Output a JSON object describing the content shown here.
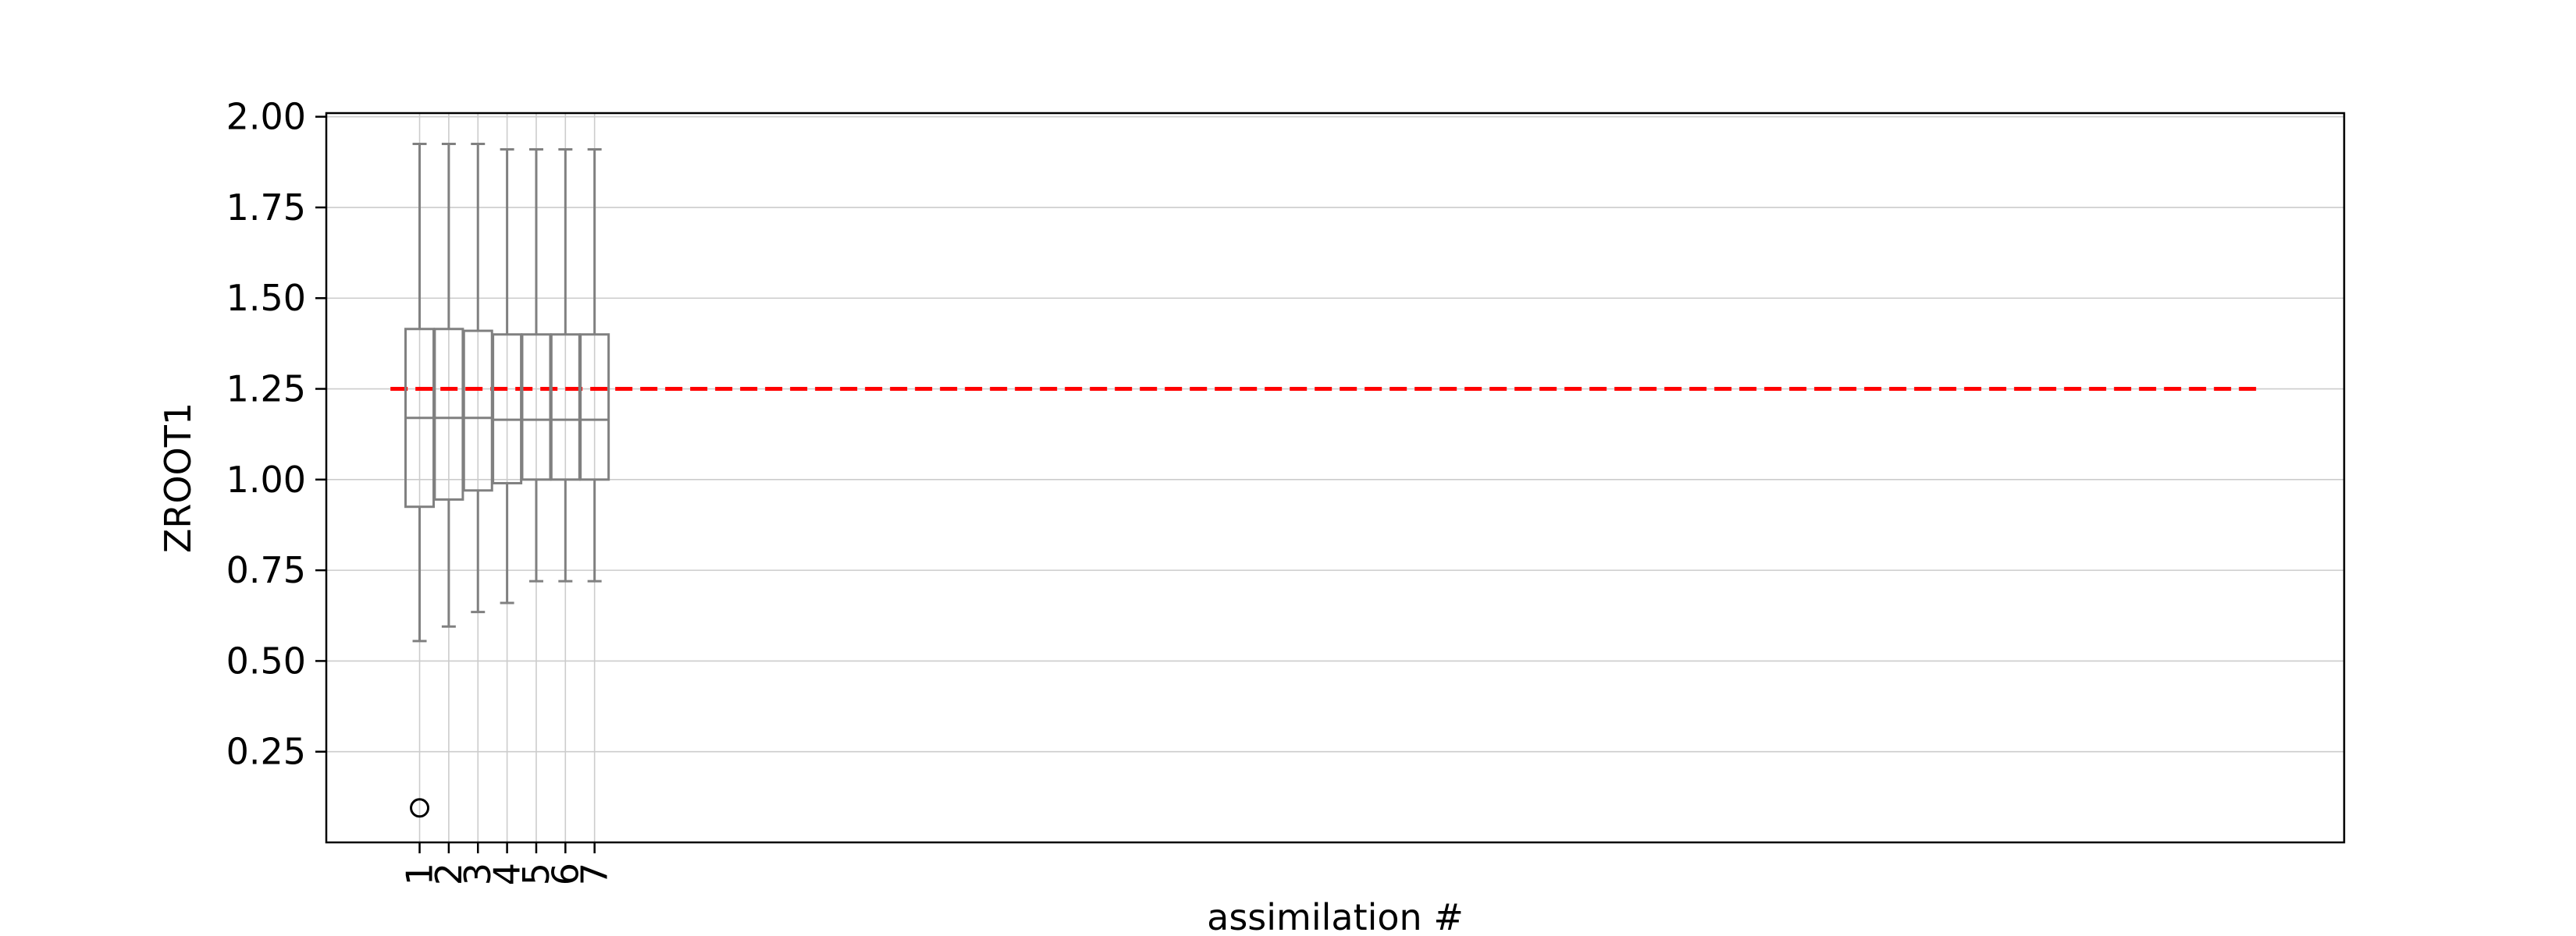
{
  "chart_data": {
    "type": "box",
    "title": "",
    "xlabel": "assimilation #",
    "ylabel": "ZROOT1",
    "categories": [
      "1",
      "2",
      "3",
      "4",
      "5",
      "6",
      "7"
    ],
    "x_positions": [
      1,
      2,
      3,
      4,
      5,
      6,
      7
    ],
    "xlim": [
      -2.2,
      67
    ],
    "ylim": [
      0.0,
      2.01
    ],
    "y_ticks": [
      "0.25",
      "0.50",
      "0.75",
      "1.00",
      "1.25",
      "1.50",
      "1.75",
      "2.00"
    ],
    "grid": true,
    "boxes": [
      {
        "category": "1",
        "whisker_low": 0.555,
        "q1": 0.925,
        "median": 1.17,
        "q3": 1.415,
        "whisker_high": 1.925,
        "outliers": [
          0.095
        ]
      },
      {
        "category": "2",
        "whisker_low": 0.595,
        "q1": 0.945,
        "median": 1.17,
        "q3": 1.415,
        "whisker_high": 1.925,
        "outliers": []
      },
      {
        "category": "3",
        "whisker_low": 0.635,
        "q1": 0.97,
        "median": 1.17,
        "q3": 1.41,
        "whisker_high": 1.925,
        "outliers": []
      },
      {
        "category": "4",
        "whisker_low": 0.66,
        "q1": 0.99,
        "median": 1.165,
        "q3": 1.4,
        "whisker_high": 1.91,
        "outliers": []
      },
      {
        "category": "5",
        "whisker_low": 0.72,
        "q1": 1.0,
        "median": 1.165,
        "q3": 1.4,
        "whisker_high": 1.91,
        "outliers": []
      },
      {
        "category": "6",
        "whisker_low": 0.72,
        "q1": 1.0,
        "median": 1.165,
        "q3": 1.4,
        "whisker_high": 1.91,
        "outliers": []
      },
      {
        "category": "7",
        "whisker_low": 0.72,
        "q1": 1.0,
        "median": 1.165,
        "q3": 1.4,
        "whisker_high": 1.91,
        "outliers": []
      }
    ],
    "reference_line": {
      "y": 1.25,
      "x_start": 0,
      "x_end": 64,
      "color": "#ff0000",
      "style": "dashed"
    },
    "colors": {
      "box": "#808080",
      "grid": "#cccccc",
      "outlier": "#000000",
      "axes": "#000000"
    }
  }
}
